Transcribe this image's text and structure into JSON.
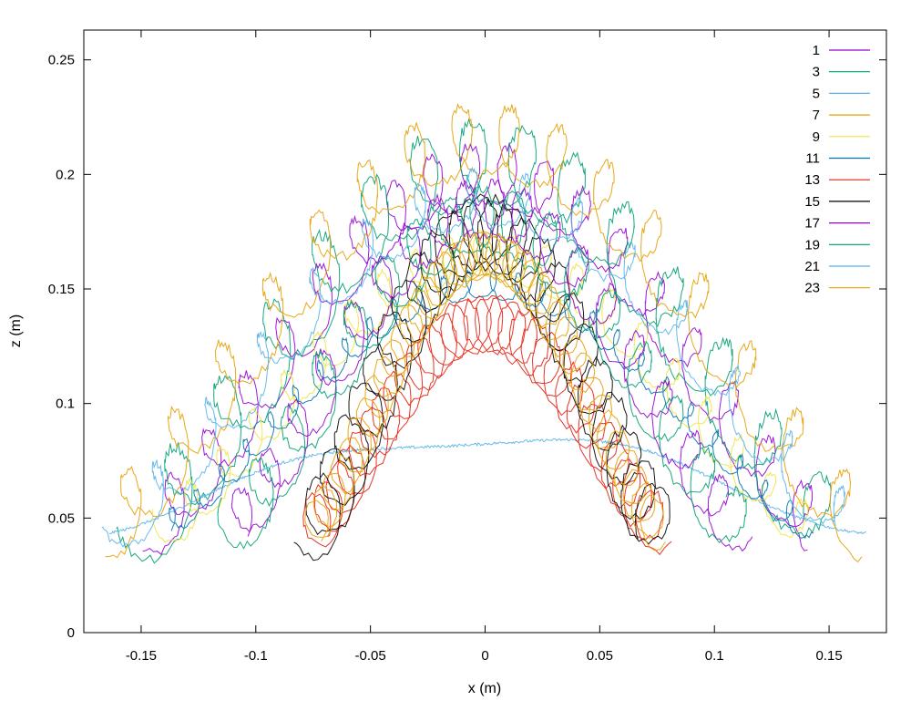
{
  "chart_data": {
    "type": "line",
    "title": "",
    "xlabel": "x (m)",
    "ylabel": "z (m)",
    "xlim": [
      -0.175,
      0.175
    ],
    "ylim": [
      0,
      0.263
    ],
    "x_ticks": [
      -0.15,
      -0.1,
      -0.05,
      0,
      0.05,
      0.1,
      0.15
    ],
    "x_tick_labels": [
      "-0.15",
      "-0.1",
      "-0.05",
      "0",
      "0.05",
      "0.1",
      "0.15"
    ],
    "y_ticks": [
      0,
      0.05,
      0.1,
      0.15,
      0.2,
      0.25
    ],
    "y_tick_labels": [
      "0",
      "0.05",
      "0.1",
      "0.15",
      "0.2",
      "0.25"
    ],
    "grid": false,
    "legend_position": "top-right",
    "series": [
      {
        "name": "1",
        "color": "#9400d3",
        "amp": 0.145,
        "peak": 0.2,
        "jitter": 0.013,
        "loops": 18
      },
      {
        "name": "3",
        "color": "#009e73",
        "amp": 0.15,
        "peak": 0.205,
        "jitter": 0.018,
        "loops": 14
      },
      {
        "name": "5",
        "color": "#56b4e9",
        "amp": 0.165,
        "peak": 0.086,
        "jitter": 0.004,
        "loops": 2
      },
      {
        "name": "7",
        "color": "#e69f00",
        "amp": 0.165,
        "peak": 0.215,
        "jitter": 0.015,
        "loops": 16
      },
      {
        "name": "9",
        "color": "#f0e442",
        "amp": 0.14,
        "peak": 0.165,
        "jitter": 0.01,
        "loops": 20
      },
      {
        "name": "11",
        "color": "#0072b2",
        "amp": 0.14,
        "peak": 0.152,
        "jitter": 0.006,
        "loops": 26
      },
      {
        "name": "13",
        "color": "#e51e10",
        "amp": 0.075,
        "peak": 0.135,
        "jitter": 0.012,
        "loops": 30
      },
      {
        "name": "15",
        "color": "#000000",
        "amp": 0.075,
        "peak": 0.175,
        "jitter": 0.015,
        "loops": 24
      },
      {
        "name": "17",
        "color": "#9400d3",
        "amp": 0.11,
        "peak": 0.185,
        "jitter": 0.012,
        "loops": 18
      },
      {
        "name": "19",
        "color": "#009e73",
        "amp": 0.11,
        "peak": 0.18,
        "jitter": 0.014,
        "loops": 16
      },
      {
        "name": "21",
        "color": "#56b4e9",
        "amp": 0.16,
        "peak": 0.19,
        "jitter": 0.012,
        "loops": 14
      },
      {
        "name": "23",
        "color": "#e69f00",
        "amp": 0.075,
        "peak": 0.165,
        "jitter": 0.01,
        "loops": 40
      }
    ]
  }
}
